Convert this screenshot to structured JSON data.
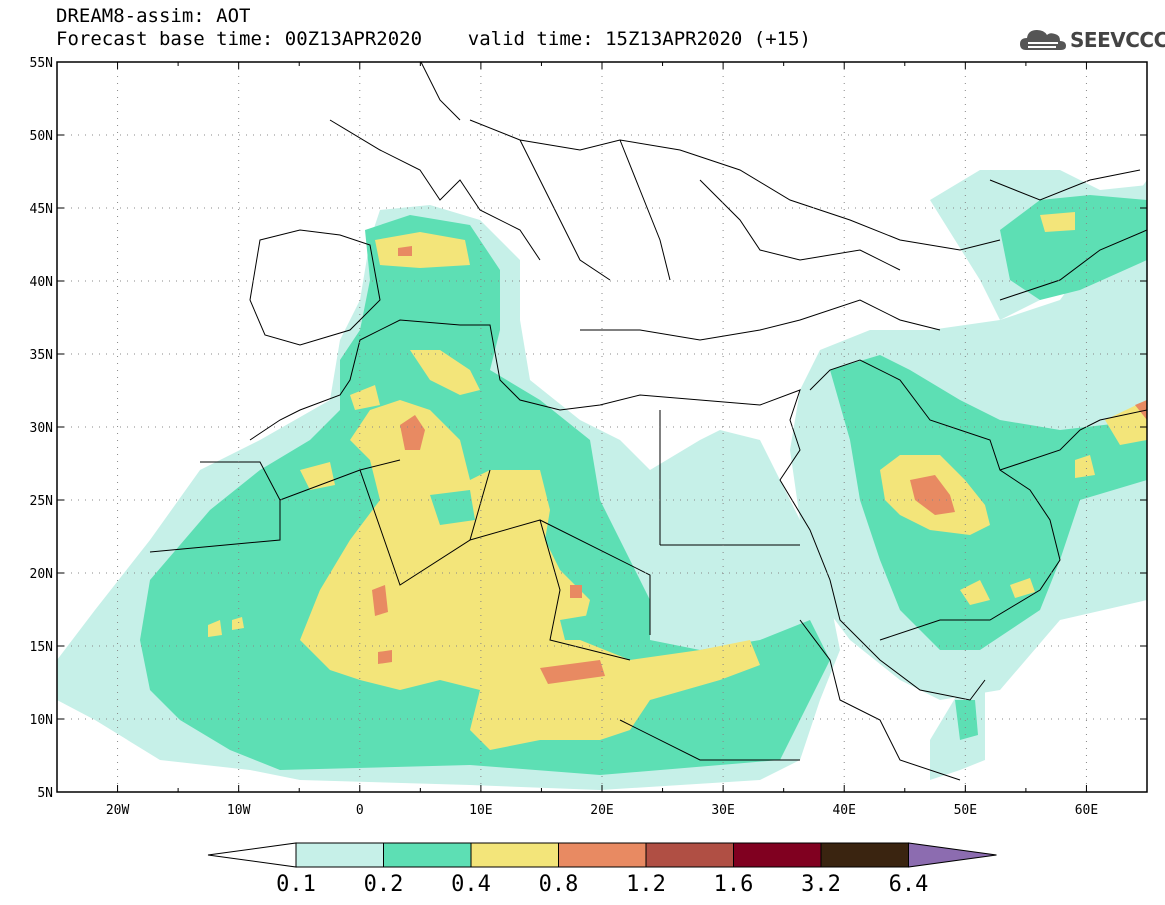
{
  "header": {
    "title_line1": "DREAM8-assim: AOT",
    "title_line2": "Forecast base time: 00Z13APR2020    valid time: 15Z13APR2020 (+15)",
    "logo_text": "SEEVCCC"
  },
  "map": {
    "projection": "lat-lon",
    "lon_range": [
      -25,
      65
    ],
    "lat_range": [
      5,
      55
    ],
    "lat_ticks": [
      "55N",
      "50N",
      "45N",
      "40N",
      "35N",
      "30N",
      "25N",
      "20N",
      "15N",
      "10N",
      "5N"
    ],
    "lon_ticks": [
      "20W",
      "10W",
      "0",
      "10E",
      "20E",
      "30E",
      "40E",
      "50E",
      "60E"
    ],
    "gridlines": "dotted"
  },
  "colorbar": {
    "levels": [
      "0.1",
      "0.2",
      "0.4",
      "0.8",
      "1.2",
      "1.6",
      "3.2",
      "6.4"
    ],
    "colors": [
      "#c6f0e8",
      "#5ddfb4",
      "#f3e57a",
      "#e88a62",
      "#b04f44",
      "#800020",
      "#3a2410",
      "#8c6cb0"
    ]
  }
}
